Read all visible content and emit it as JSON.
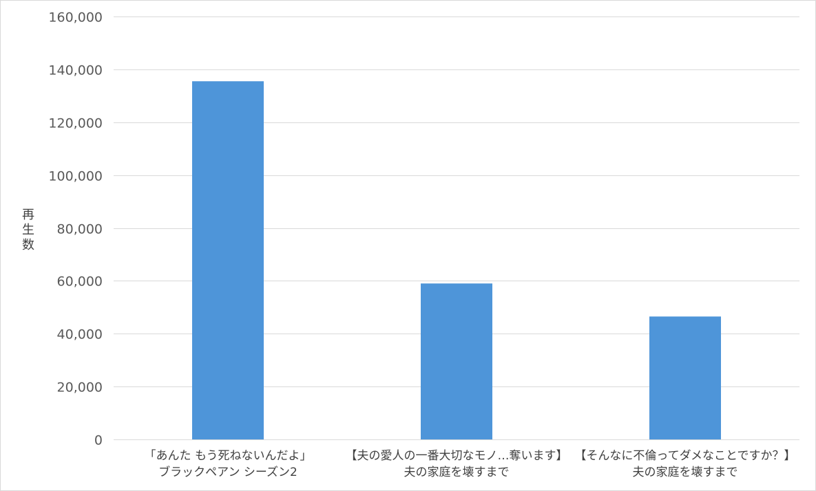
{
  "chart_data": {
    "type": "bar",
    "title": "",
    "xlabel": "",
    "ylabel": "再生数",
    "ylim": [
      0,
      160000
    ],
    "yticks": [
      0,
      20000,
      40000,
      60000,
      80000,
      100000,
      120000,
      140000,
      160000
    ],
    "ytick_labels": [
      "0",
      "20,000",
      "40,000",
      "60,000",
      "80,000",
      "100,000",
      "120,000",
      "140,000",
      "160,000"
    ],
    "categories": [
      [
        "「あんた もう死ねないんだよ」",
        "ブラックペアン シーズン2"
      ],
      [
        "【夫の愛人の一番大切なモノ…奪います】",
        "夫の家庭を壊すまで"
      ],
      [
        "【そんなに不倫ってダメなことですか？】",
        "夫の家庭を壊すまで"
      ]
    ],
    "values": [
      135500,
      59000,
      46500
    ],
    "grid": true,
    "legend": "none",
    "bar_color": "#4e95d9"
  }
}
